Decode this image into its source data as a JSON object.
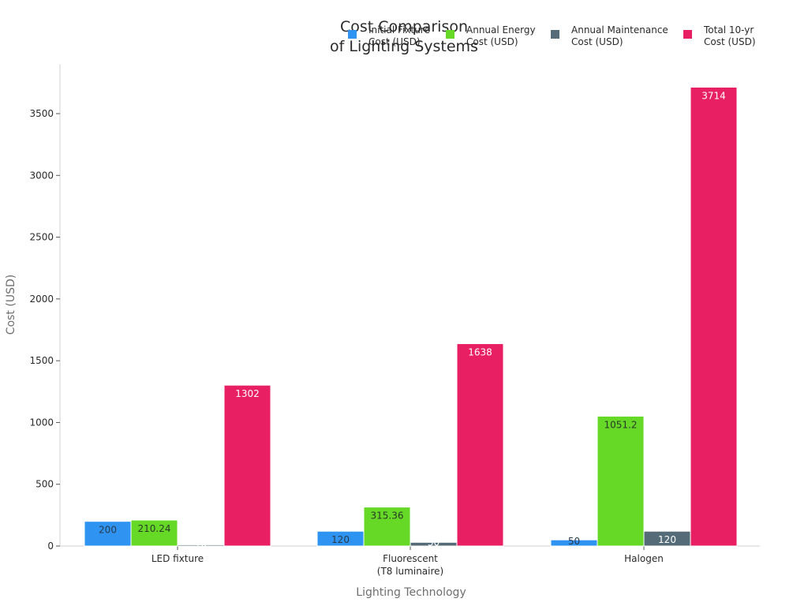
{
  "chart_data": {
    "type": "bar",
    "title": "Cost Comparison\nof Lighting Systems",
    "title_lines": [
      "Cost Comparison",
      "of Lighting Systems"
    ],
    "xlabel": "Lighting Technology",
    "ylabel": "Cost (USD)",
    "categories": [
      "LED fixture",
      "Fluorescent\n(T8 luminaire)",
      "Halogen"
    ],
    "category_lines": [
      [
        "LED fixture"
      ],
      [
        "Fluorescent",
        "(T8 luminaire)"
      ],
      [
        "Halogen"
      ]
    ],
    "ylim": [
      0,
      3900
    ],
    "yticks": [
      0,
      500,
      1000,
      1500,
      2000,
      2500,
      3000,
      3500
    ],
    "grid": false,
    "legend_position": "top-right",
    "series": [
      {
        "name": "Initial Fixture Cost (USD)",
        "name_lines": [
          "Initial Fixture",
          "Cost (USD)"
        ],
        "color": "#2f93f1",
        "label_color": "#2a3a4a",
        "values": [
          200,
          120,
          50
        ],
        "labels": [
          "200",
          "120",
          "50"
        ]
      },
      {
        "name": "Annual Energy Cost (USD)",
        "name_lines": [
          "Annual Energy",
          "Cost (USD)"
        ],
        "color": "#66d926",
        "label_color": "#2a3a2a",
        "values": [
          210.24,
          315.36,
          1051.2
        ],
        "labels": [
          "210.24",
          "315.36",
          "1051.2"
        ]
      },
      {
        "name": "Annual Maintenance Cost (USD)",
        "name_lines": [
          "Annual Maintenance",
          "Cost (USD)"
        ],
        "color": "#566b78",
        "label_color": "#ffffff",
        "values": [
          10,
          30,
          120
        ],
        "labels": [
          "10",
          "30",
          "120"
        ]
      },
      {
        "name": "Total 10-yr Cost (USD)",
        "name_lines": [
          "Total 10-yr",
          "Cost (USD)"
        ],
        "color": "#e82063",
        "label_color": "#ffffff",
        "values": [
          1302,
          1638,
          3714
        ],
        "labels": [
          "1302",
          "1638",
          "3714"
        ]
      }
    ]
  }
}
